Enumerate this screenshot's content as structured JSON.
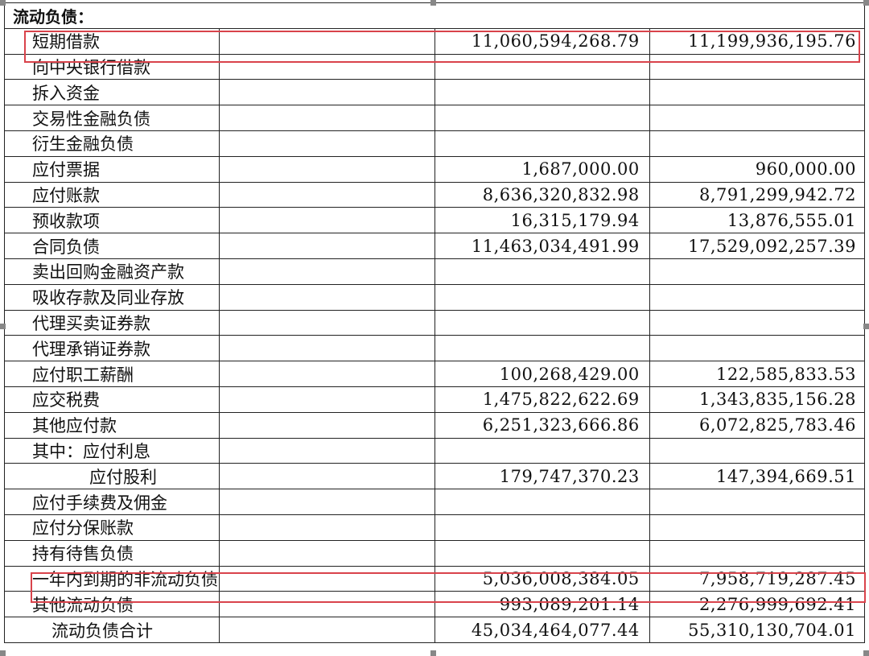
{
  "section_title": "流动负债：",
  "rows": [
    {
      "label": "短期借款",
      "current": "11,060,594,268.79",
      "previous": "11,199,936,195.76",
      "highlight": true
    },
    {
      "label": "向中央银行借款",
      "current": "",
      "previous": ""
    },
    {
      "label": "拆入资金",
      "current": "",
      "previous": ""
    },
    {
      "label": "交易性金融负债",
      "current": "",
      "previous": ""
    },
    {
      "label": "衍生金融负债",
      "current": "",
      "previous": ""
    },
    {
      "label": "应付票据",
      "current": "1,687,000.00",
      "previous": "960,000.00"
    },
    {
      "label": "应付账款",
      "current": "8,636,320,832.98",
      "previous": "8,791,299,942.72"
    },
    {
      "label": "预收款项",
      "current": "16,315,179.94",
      "previous": "13,876,555.01"
    },
    {
      "label": "合同负债",
      "current": "11,463,034,491.99",
      "previous": "17,529,092,257.39"
    },
    {
      "label": "卖出回购金融资产款",
      "current": "",
      "previous": ""
    },
    {
      "label": "吸收存款及同业存放",
      "current": "",
      "previous": ""
    },
    {
      "label": "代理买卖证券款",
      "current": "",
      "previous": ""
    },
    {
      "label": "代理承销证券款",
      "current": "",
      "previous": ""
    },
    {
      "label": "应付职工薪酬",
      "current": "100,268,429.00",
      "previous": "122,585,833.53"
    },
    {
      "label": "应交税费",
      "current": "1,475,822,622.69",
      "previous": "1,343,835,156.28"
    },
    {
      "label": "其他应付款",
      "current": "6,251,323,666.86",
      "previous": "6,072,825,783.46"
    },
    {
      "label": "其中：应付利息",
      "current": "",
      "previous": ""
    },
    {
      "label": "应付股利",
      "current": "179,747,370.23",
      "previous": "147,394,669.51",
      "indent": 2
    },
    {
      "label": "应付手续费及佣金",
      "current": "",
      "previous": ""
    },
    {
      "label": "应付分保账款",
      "current": "",
      "previous": ""
    },
    {
      "label": "持有待售负债",
      "current": "",
      "previous": ""
    },
    {
      "label": "一年内到期的非流动负债",
      "current": "5,036,008,384.05",
      "previous": "7,958,719,287.45",
      "highlight": true
    },
    {
      "label": "其他流动负债",
      "current": "993,089,201.14",
      "previous": "2,276,999,692.41"
    },
    {
      "label": "流动负债合计",
      "current": "45,034,464,077.44",
      "previous": "55,310,130,704.01",
      "indent": 1
    }
  ],
  "highlight_color": "#d9434b"
}
